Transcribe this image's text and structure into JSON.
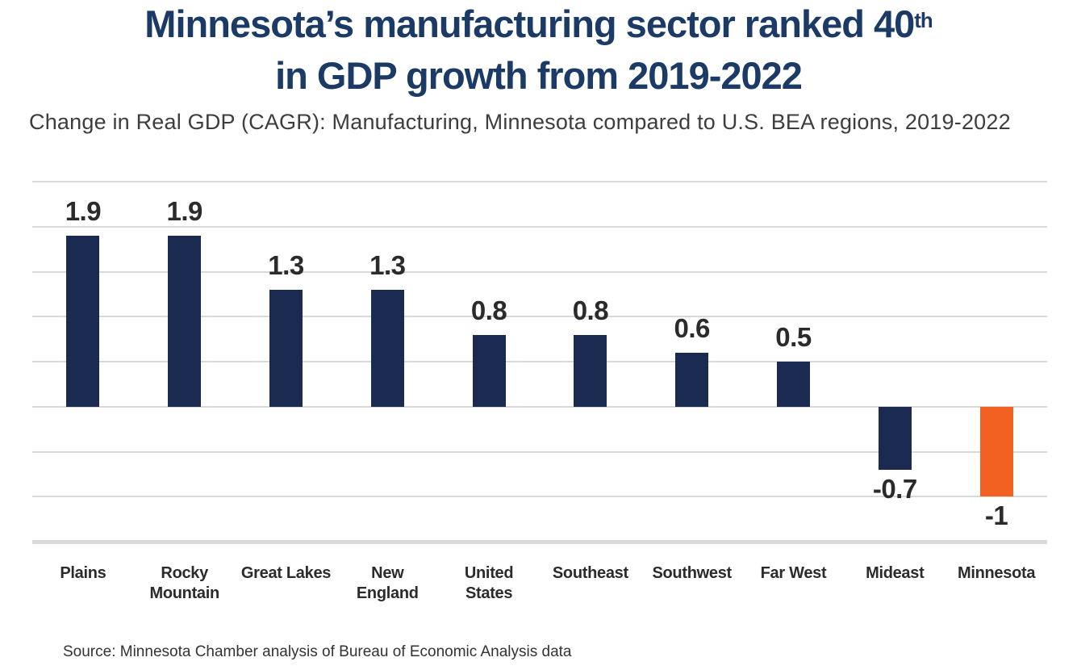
{
  "title": {
    "line1_pre": "Minnesota’s manufacturing sector ranked 40",
    "line1_sup": "th",
    "line2": "in GDP growth from 2019-2022",
    "color": "#1b3a66"
  },
  "subtitle": "Change in Real GDP (CAGR): Manufacturing, Minnesota compared to U.S. BEA regions, 2019-2022",
  "source": "Source: Minnesota Chamber analysis of Bureau of Economic Analysis data",
  "chart_data": {
    "type": "bar",
    "title": "Minnesota’s manufacturing sector ranked 40th in GDP growth from 2019-2022",
    "subtitle": "Change in Real GDP (CAGR): Manufacturing, Minnesota compared to U.S. BEA regions, 2019-2022",
    "categories": [
      "Plains",
      "Rocky Mountain",
      "Great Lakes",
      "New England",
      "United States",
      "Southeast",
      "Southwest",
      "Far West",
      "Mideast",
      "Minnesota"
    ],
    "values": [
      1.9,
      1.9,
      1.3,
      1.3,
      0.8,
      0.8,
      0.6,
      0.5,
      -0.7,
      -1
    ],
    "value_labels": [
      "1.9",
      "1.9",
      "1.3",
      "1.3",
      "0.8",
      "0.8",
      "0.6",
      "0.5",
      "-0.7",
      "-1"
    ],
    "label_lines": [
      [
        "Plains"
      ],
      [
        "Rocky",
        "Mountain"
      ],
      [
        "Great Lakes"
      ],
      [
        "New",
        "England"
      ],
      [
        "United",
        "States"
      ],
      [
        "Southeast"
      ],
      [
        "Southwest"
      ],
      [
        "Far West"
      ],
      [
        "Mideast"
      ],
      [
        "Minnesota"
      ]
    ],
    "xlabel": "",
    "ylabel": "",
    "ylim": [
      -1.5,
      2.5
    ],
    "grid_step": 0.5,
    "grid": true,
    "legend": "none",
    "bar_color": "#1b2a50",
    "highlight_index": 9,
    "highlight_color": "#f26122",
    "gridline_color": "#d9d9d9"
  }
}
